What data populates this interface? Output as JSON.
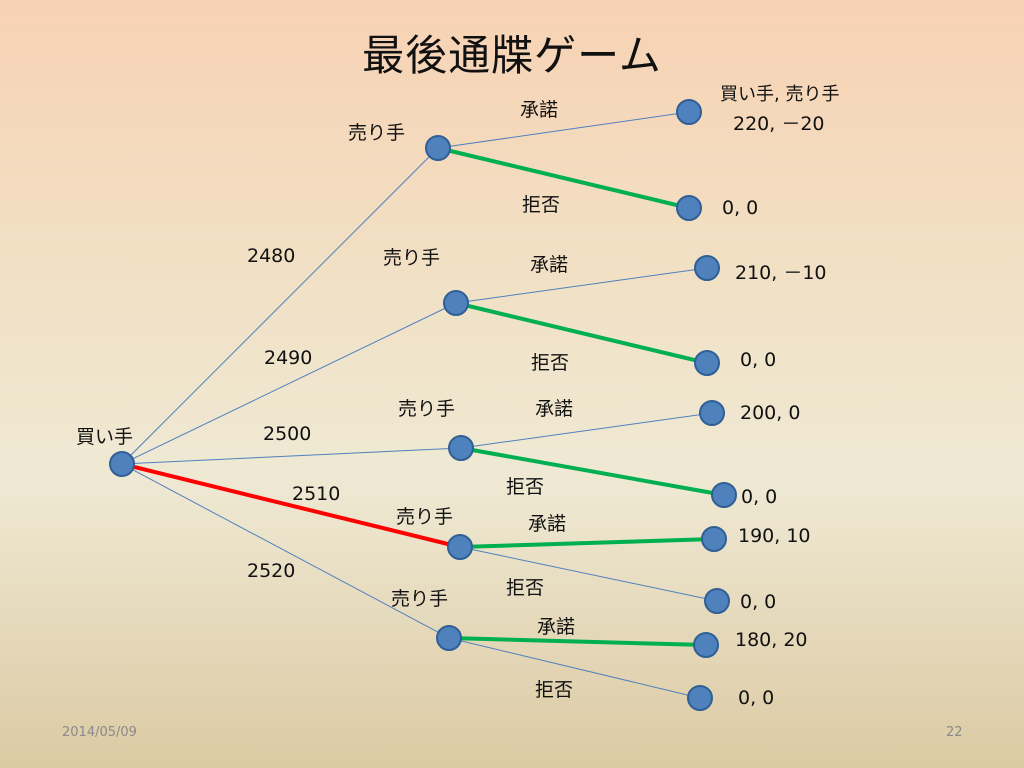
{
  "title": "最後通牒ゲーム",
  "footer": {
    "date": "2014/05/09",
    "page": "22"
  },
  "root": {
    "label": "買い手"
  },
  "colors": {
    "node": "#4f81bd",
    "node_stroke": "#2f5f95",
    "edge": "#4f81bd",
    "accepted_path": "#00b050",
    "chosen_offer": "#ff0000"
  },
  "branches": [
    {
      "offer": "2480",
      "seller": "売り手",
      "accept": "承諾",
      "reject": "拒否",
      "accept_payoff": "220, －20",
      "reject_payoff": "0, 0",
      "chosen": false,
      "seller_choice": "reject"
    },
    {
      "offer": "2490",
      "seller": "売り手",
      "accept": "承諾",
      "reject": "拒否",
      "accept_payoff": "210, －10",
      "reject_payoff": "0, 0",
      "chosen": false,
      "seller_choice": "reject"
    },
    {
      "offer": "2500",
      "seller": "売り手",
      "accept": "承諾",
      "reject": "拒否",
      "accept_payoff": "200, 0",
      "reject_payoff": "0, 0",
      "chosen": false,
      "seller_choice": "reject"
    },
    {
      "offer": "2510",
      "seller": "売り手",
      "accept": "承諾",
      "reject": "拒否",
      "accept_payoff": "190, 10",
      "reject_payoff": "0, 0",
      "chosen": true,
      "seller_choice": "accept"
    },
    {
      "offer": "2520",
      "seller": "売り手",
      "accept": "承諾",
      "reject": "拒否",
      "accept_payoff": "180, 20",
      "reject_payoff": "0, 0",
      "chosen": false,
      "seller_choice": "accept"
    }
  ],
  "payoff_header": "買い手, 売り手"
}
